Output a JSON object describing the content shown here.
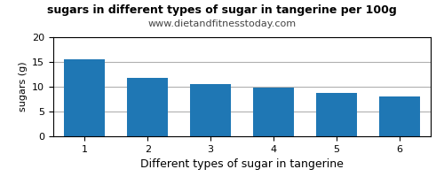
{
  "chart_data": {
    "type": "bar",
    "title": "sugars in different types of sugar in tangerine per 100g",
    "subtitle": "www.dietandfitnesstoday.com",
    "xlabel": "Different types of sugar in tangerine",
    "ylabel": "sugars (g)",
    "categories": [
      1,
      2,
      3,
      4,
      5,
      6
    ],
    "values": [
      15.5,
      11.8,
      10.5,
      9.9,
      8.7,
      8.1
    ],
    "ylim": [
      0,
      20
    ],
    "yticks": [
      0,
      5,
      10,
      15,
      20
    ],
    "grid": true
  }
}
